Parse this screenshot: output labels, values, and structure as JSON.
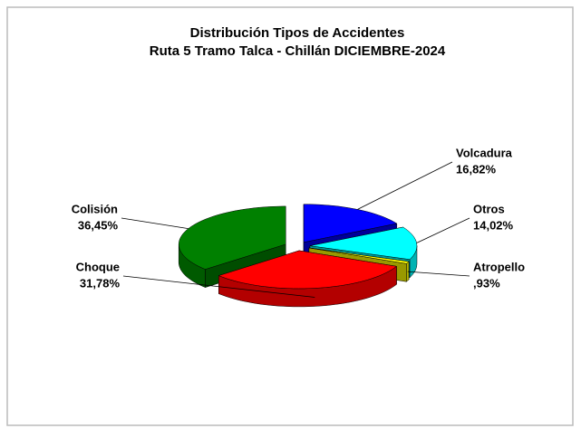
{
  "chart_data": {
    "type": "pie3d",
    "title": "Distribución Tipos de Accidentes",
    "subtitle": "Ruta 5 Tramo Talca - Chillán DICIEMBRE-2024",
    "categories": [
      "Volcadura",
      "Otros",
      "Atropello",
      "Choque",
      "Colisión"
    ],
    "values": [
      16.82,
      14.02,
      0.93,
      31.78,
      36.45
    ],
    "value_labels": [
      "16,82%",
      "14,02%",
      ",93%",
      "31,78%",
      "36,45%"
    ],
    "colors": [
      "#0000ff",
      "#00ffff",
      "#ffff00",
      "#ff0000",
      "#008000"
    ]
  }
}
